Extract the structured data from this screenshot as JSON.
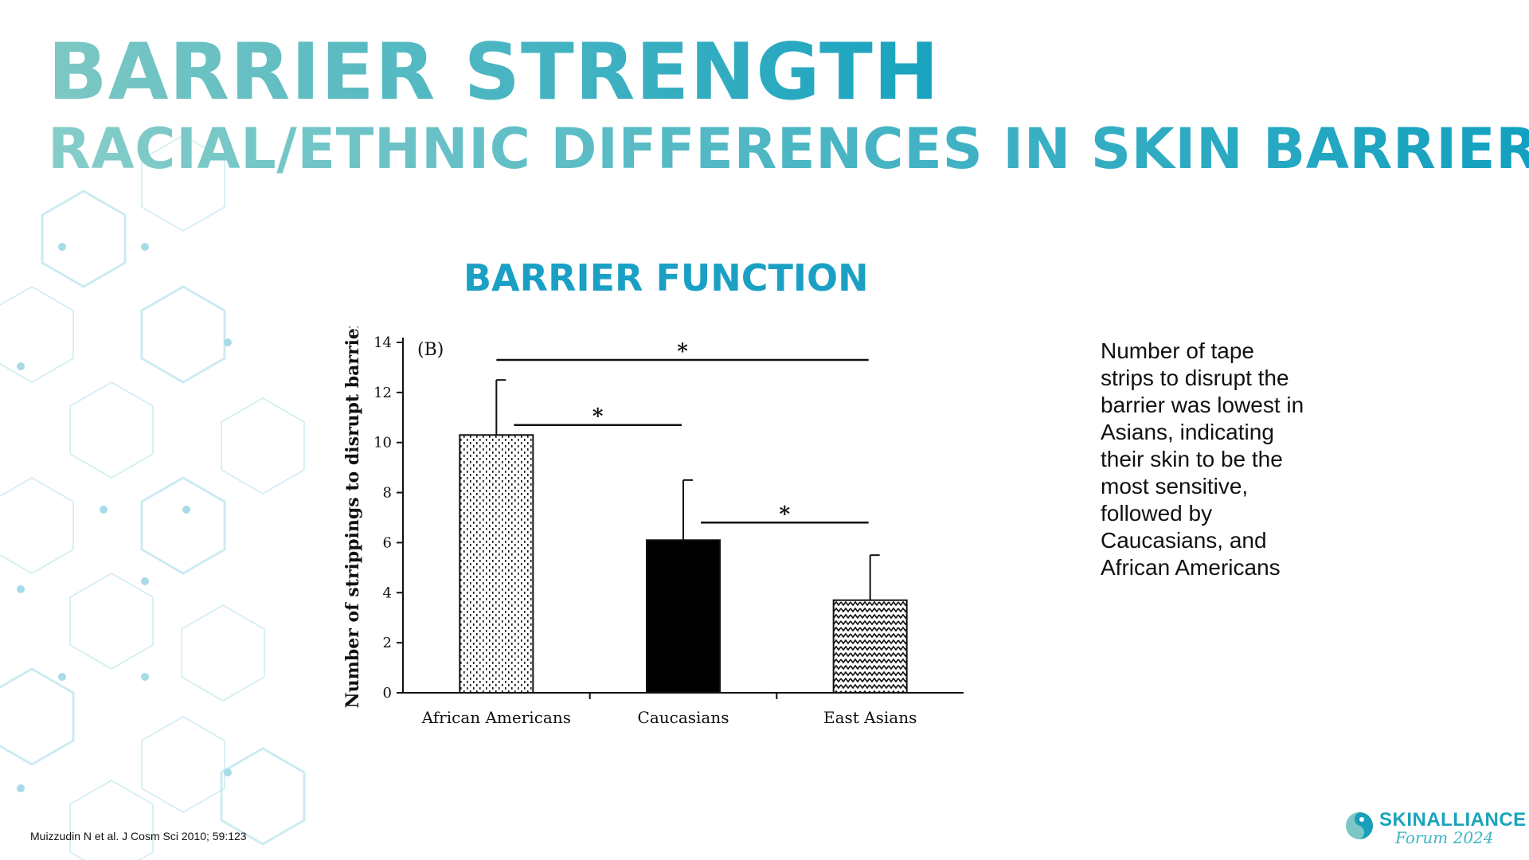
{
  "slide": {
    "title": "BARRIER STRENGTH",
    "subtitle": "RACIAL/ETHNIC DIFFERENCES IN SKIN BARRIER",
    "section_title": "BARRIER FUNCTION",
    "side_text": "Number of tape strips to disrupt the barrier was lowest in Asians, indicating their skin to be the most sensitive, followed by Caucasians, and African Americans",
    "citation": "Muizzudin N et al. J Cosm Sci 2010; 59:123",
    "logo": {
      "name": "SKINALLIANCE",
      "tagline": "Forum 2024",
      "icon": "skinalliance-logo-icon"
    }
  },
  "colors": {
    "accent": "#1aa0c4",
    "title_start": "#7dc8c4",
    "title_end": "#18a3bf",
    "hex_pattern": "#bfe6ef"
  },
  "chart_data": {
    "type": "bar",
    "panel_label": "(B)",
    "ylabel": "Number of strippings to disrupt barrier",
    "xlabel": "",
    "ylim": [
      0,
      14
    ],
    "yticks": [
      0,
      2,
      4,
      6,
      8,
      10,
      12,
      14
    ],
    "categories": [
      "African Americans",
      "Caucasians",
      "East Asians"
    ],
    "values": [
      10.3,
      6.1,
      3.7
    ],
    "error_upper": [
      12.5,
      8.5,
      5.5
    ],
    "patterns": [
      "dotted",
      "solid-black",
      "zigzag"
    ],
    "significance": [
      {
        "from": 0,
        "to": 2,
        "y": 13.3,
        "label": "*"
      },
      {
        "from": 0,
        "to": 1,
        "y": 10.7,
        "label": "*"
      },
      {
        "from": 1,
        "to": 2,
        "y": 6.8,
        "label": "*"
      }
    ]
  }
}
